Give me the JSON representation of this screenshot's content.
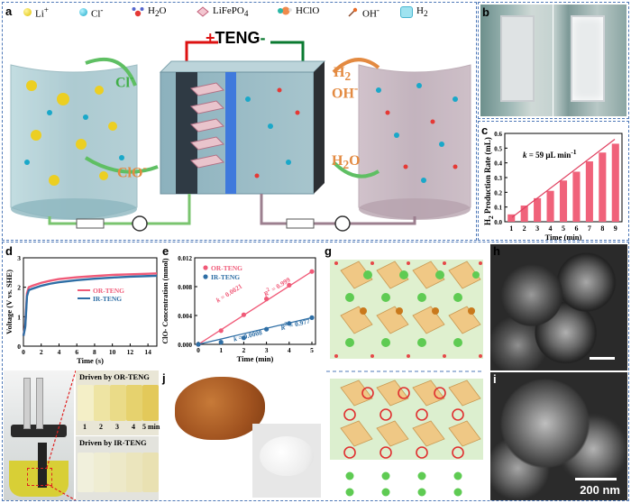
{
  "panels": {
    "a": {
      "label": "a",
      "legend": [
        {
          "symbol": "Li",
          "sup": "+"
        },
        {
          "symbol": "Cl",
          "sup": "-"
        },
        {
          "symbol": "H",
          "sub": "2",
          "tail": "O"
        },
        {
          "symbol": "LiFePO",
          "sub": "4"
        },
        {
          "symbol": "HClO"
        },
        {
          "symbol": "OH",
          "sup": "-"
        },
        {
          "symbol": "H",
          "sub": "2"
        }
      ],
      "teng": {
        "plus": "+",
        "text": "TENG",
        "minus": "-"
      },
      "cl_label": {
        "base": "Cl",
        "sup": "-"
      },
      "clo_label": {
        "base": "ClO",
        "sup": "-"
      },
      "h2_label": {
        "base": "H",
        "sub": "2"
      },
      "oh_label": {
        "base": "OH",
        "sup": "-"
      },
      "h2o_label": {
        "base": "H",
        "sub": "2",
        "tail": "O"
      }
    },
    "b": {
      "label": "b"
    },
    "c": {
      "label": "c",
      "ylabel_main": "H",
      "ylabel_sub": "2",
      "ylabel_tail": " Production Rate (mL)",
      "annotation_k": "k",
      "annotation_rest": " = 59 μL min",
      "annotation_sup": "-1"
    },
    "d": {
      "label": "d"
    },
    "e": {
      "label": "e",
      "k_or_k": "k",
      "k_or_val": " = 0.0021",
      "r_or_r": "R",
      "r_or_val": " = 0.999",
      "k_ir_k": "k",
      "k_ir_val": " = 0.0008",
      "r_ir_r": "R",
      "r_ir_val": " = 0.977"
    },
    "f": {
      "label": "f",
      "or_caption": "Driven by OR-TENG",
      "ir_caption": "Driven by IR-TENG",
      "time_labels": [
        "1",
        "2",
        "3",
        "4",
        "5 min"
      ]
    },
    "g": {
      "label": "g"
    },
    "h": {
      "label": "h"
    },
    "i": {
      "label": "i",
      "scalebar": "200 nm"
    },
    "j": {
      "label": "j"
    }
  },
  "chart_data": [
    {
      "id": "c",
      "type": "bar",
      "categories": [
        "1",
        "2",
        "3",
        "4",
        "5",
        "6",
        "7",
        "8",
        "9"
      ],
      "values": [
        0.05,
        0.11,
        0.16,
        0.21,
        0.28,
        0.34,
        0.41,
        0.47,
        0.53
      ],
      "xlabel": "Time (min)",
      "ylabel": "H2 Production Rate (mL)",
      "ylim": [
        0,
        0.6
      ],
      "yticks": [
        "0.0",
        "0.1",
        "0.2",
        "0.3",
        "0.4",
        "0.5",
        "0.6"
      ],
      "color": "#f0627a"
    },
    {
      "id": "d",
      "type": "line",
      "xlabel": "Time (s)",
      "ylabel": "Voltage (V vs. SHE)",
      "xlim": [
        0,
        15
      ],
      "ylim": [
        0,
        3
      ],
      "xticks": [
        "0",
        "2",
        "4",
        "6",
        "8",
        "10",
        "12",
        "14"
      ],
      "yticks": [
        "0",
        "1",
        "2",
        "3"
      ],
      "series": [
        {
          "name": "OR-TENG",
          "color": "#f05a78",
          "x": [
            0,
            0.2,
            0.4,
            0.6,
            1,
            2,
            3,
            4,
            6,
            8,
            10,
            12,
            14,
            15
          ],
          "y": [
            0.35,
            0.7,
            1.8,
            2.0,
            2.05,
            2.15,
            2.22,
            2.28,
            2.34,
            2.38,
            2.42,
            2.44,
            2.46,
            2.47
          ]
        },
        {
          "name": "IR-TENG",
          "color": "#2e6ea5",
          "x": [
            0,
            0.2,
            0.4,
            0.6,
            1,
            2,
            3,
            4,
            6,
            8,
            10,
            12,
            14,
            15
          ],
          "y": [
            0.35,
            0.65,
            1.7,
            1.9,
            1.95,
            2.05,
            2.12,
            2.17,
            2.24,
            2.29,
            2.33,
            2.36,
            2.38,
            2.39
          ]
        }
      ]
    },
    {
      "id": "e",
      "type": "scatter",
      "xlabel": "Time (min)",
      "ylabel": "ClO- Concentration (mmol)",
      "xlim": [
        0,
        5
      ],
      "ylim": [
        0,
        0.012
      ],
      "xticks": [
        "0",
        "1",
        "2",
        "3",
        "4",
        "5"
      ],
      "yticks": [
        "0.000",
        "0.004",
        "0.008",
        "0.012"
      ],
      "series": [
        {
          "name": "OR-TENG",
          "color": "#f05a78",
          "x": [
            0,
            1,
            2,
            3,
            4,
            5
          ],
          "y": [
            0.0,
            0.0019,
            0.0041,
            0.0063,
            0.0082,
            0.0101
          ]
        },
        {
          "name": "IR-TENG",
          "color": "#2e6ea5",
          "x": [
            0,
            1,
            2,
            3,
            4,
            5
          ],
          "y": [
            0.0,
            0.0003,
            0.0009,
            0.0021,
            0.0029,
            0.0037
          ]
        }
      ]
    }
  ]
}
